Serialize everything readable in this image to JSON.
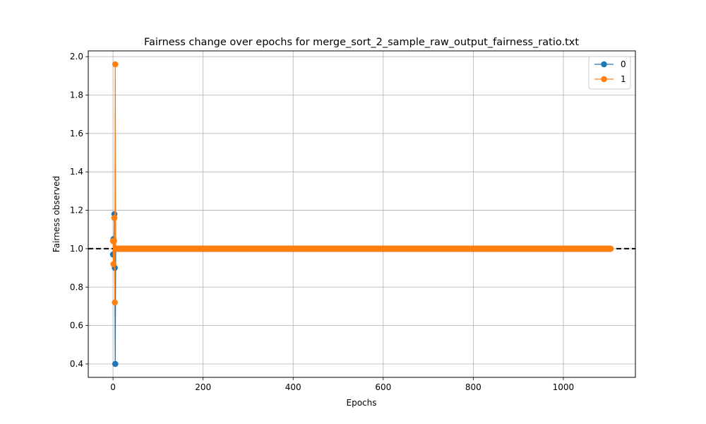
{
  "chart_data": {
    "type": "line",
    "title": "Fairness change over epochs for merge_sort_2_sample_raw_output_fairness_ratio.txt",
    "xlabel": "Epochs",
    "ylabel": "Fairness observed",
    "xlim": [
      -55,
      1160
    ],
    "ylim": [
      0.33,
      2.03
    ],
    "xticks": [
      0,
      200,
      400,
      600,
      800,
      1000
    ],
    "yticks": [
      0.4,
      0.6,
      0.8,
      1.0,
      1.2,
      1.4,
      1.6,
      1.8,
      2.0
    ],
    "xtick_labels": [
      "0",
      "200",
      "400",
      "600",
      "800",
      "1000"
    ],
    "ytick_labels": [
      "0.4",
      "0.6",
      "0.8",
      "1.0",
      "1.2",
      "1.4",
      "1.6",
      "1.8",
      "2.0"
    ],
    "grid": true,
    "legend_position": "top-right",
    "reference_line": {
      "y": 1.0,
      "style": "dashed",
      "color": "#000000"
    },
    "series": [
      {
        "name": "0",
        "color": "#1f77b4",
        "points": [
          [
            0,
            0.97
          ],
          [
            1,
            1.05
          ],
          [
            2,
            1.04
          ],
          [
            3,
            1.18
          ],
          [
            4,
            0.9
          ],
          [
            5,
            0.4
          ],
          [
            6,
            1.0
          ],
          [
            7,
            1.0
          ],
          [
            8,
            1.0
          ]
        ],
        "constant_after": {
          "x_start": 9,
          "x_end": 1105,
          "step": 1,
          "y": 1.0
        }
      },
      {
        "name": "1",
        "color": "#ff7f0e",
        "points": [
          [
            0,
            1.04
          ],
          [
            1,
            0.92
          ],
          [
            2,
            1.04
          ],
          [
            3,
            1.16
          ],
          [
            4,
            0.72
          ],
          [
            5,
            1.96
          ],
          [
            6,
            1.0
          ],
          [
            7,
            1.0
          ],
          [
            8,
            1.0
          ]
        ],
        "constant_after": {
          "x_start": 9,
          "x_end": 1105,
          "step": 1,
          "y": 1.0
        }
      }
    ]
  }
}
